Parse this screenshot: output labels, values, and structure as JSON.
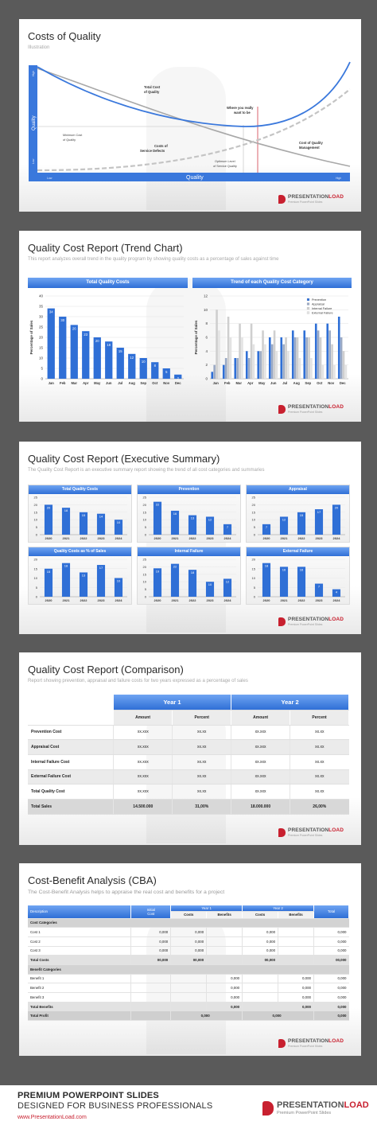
{
  "logo": {
    "brand_a": "PRESENTATION",
    "brand_b": "LOAD",
    "tagline": "Premium PowerPoint Slides"
  },
  "slide1": {
    "title": "Costs of Quality",
    "subtitle": "Illustration",
    "y_axis_label": "Quality",
    "y_high": "High",
    "y_low": "Low",
    "x_axis_label": "Quality",
    "x_low": "Low",
    "x_high": "High",
    "annotations": {
      "total_cost": [
        "Total Cost",
        "of Quality"
      ],
      "where": [
        "Where you really",
        "want to be"
      ],
      "minimum": [
        "Minimum Cost",
        "of Quality"
      ],
      "defects": [
        "Costs of",
        "Service Defects"
      ],
      "management": [
        "Cost of Quality",
        "Management"
      ],
      "optimum": [
        "Optimum Level",
        "of Service Quality"
      ]
    }
  },
  "slide2": {
    "title": "Quality Cost Report (Trend Chart)",
    "subtitle": "This report analyzes overall trend in the quality program by showing quality costs as a percentage of sales against time",
    "chart_data": [
      {
        "type": "bar",
        "title": "Total Quality Costs",
        "ylabel": "Percentage of Sales",
        "categories": [
          "Jan",
          "Feb",
          "Mar",
          "Apr",
          "May",
          "Jun",
          "Jul",
          "Aug",
          "Sep",
          "Oct",
          "Nov",
          "Dec"
        ],
        "values": [
          34,
          30,
          26,
          23,
          20,
          18,
          15,
          12,
          10,
          8,
          5,
          2
        ],
        "ylim": [
          0,
          40
        ],
        "yticks": [
          "0",
          "5",
          "10",
          "15",
          "20",
          "25",
          "30",
          "35",
          "40"
        ]
      },
      {
        "type": "bar",
        "title": "Trend of each Quality Cost Category",
        "ylabel": "Percentage of Sales",
        "categories": [
          "Jan",
          "Feb",
          "Mar",
          "Apr",
          "May",
          "Jun",
          "Jul",
          "Aug",
          "Sep",
          "Oct",
          "Nov",
          "Dec"
        ],
        "ylim": [
          0,
          12
        ],
        "yticks": [
          "0",
          "2",
          "4",
          "6",
          "8",
          "10",
          "12"
        ],
        "legend": "top-right",
        "series": [
          {
            "name": "Prevention",
            "values": [
              1,
              2,
              3,
              4,
              4,
              6,
              6,
              7,
              7,
              8,
              8,
              9
            ]
          },
          {
            "name": "Appraisal",
            "values": [
              2,
              3,
              3,
              3,
              4,
              5,
              5,
              6,
              6,
              7,
              7,
              6
            ]
          },
          {
            "name": "Internal Failure",
            "values": [
              10,
              9,
              8,
              8,
              7,
              7,
              6,
              6,
              6,
              6,
              5,
              4
            ]
          },
          {
            "name": "External Failure",
            "values": [
              7,
              6,
              6,
              5,
              5,
              4,
              4,
              3,
              3,
              2,
              2,
              2
            ]
          }
        ],
        "colors": [
          "#2f6fd6",
          "#9aa9c4",
          "#cfcfcf",
          "#e3e3e3"
        ]
      }
    ]
  },
  "slide3": {
    "title": "Quality Cost Report (Executive Summary)",
    "subtitle": "The Quality Cost Report is an executive summary report showing the trend of all cost categories and summaries",
    "chart_data": [
      {
        "type": "bar",
        "title": "Total Quality Costs",
        "categories": [
          "2020",
          "2021",
          "2022",
          "2023",
          "2024"
        ],
        "values": [
          20,
          18,
          15,
          14,
          10
        ],
        "ylim": [
          0,
          25
        ],
        "yticks": [
          "0",
          "5",
          "10",
          "15",
          "20",
          "25"
        ]
      },
      {
        "type": "bar",
        "title": "Prevention",
        "categories": [
          "2020",
          "2021",
          "2022",
          "2023",
          "2024"
        ],
        "values": [
          22,
          16,
          13,
          12,
          7
        ],
        "ylim": [
          0,
          25
        ],
        "yticks": [
          "0",
          "5",
          "10",
          "15",
          "20",
          "25"
        ]
      },
      {
        "type": "bar",
        "title": "Appraisal",
        "categories": [
          "2020",
          "2021",
          "2022",
          "2023",
          "2024"
        ],
        "values": [
          7,
          12,
          15,
          17,
          20
        ],
        "ylim": [
          0,
          25
        ],
        "yticks": [
          "0",
          "5",
          "10",
          "15",
          "20",
          "25"
        ]
      },
      {
        "type": "bar",
        "title": "Quality Costs as % of Sales",
        "categories": [
          "2020",
          "2021",
          "2022",
          "2023",
          "2024"
        ],
        "values": [
          15,
          18,
          13,
          17,
          10
        ],
        "ylim": [
          0,
          20
        ],
        "yticks": [
          "0",
          "5",
          "10",
          "15",
          "20"
        ]
      },
      {
        "type": "bar",
        "title": "Internal Failure",
        "categories": [
          "2020",
          "2021",
          "2022",
          "2023",
          "2024"
        ],
        "values": [
          19,
          22,
          18,
          10,
          12
        ],
        "ylim": [
          0,
          25
        ],
        "yticks": [
          "0",
          "5",
          "10",
          "15",
          "20",
          "25"
        ]
      },
      {
        "type": "bar",
        "title": "External Failure",
        "categories": [
          "2020",
          "2021",
          "2022",
          "2023",
          "2024"
        ],
        "values": [
          18,
          16,
          16,
          7,
          4
        ],
        "ylim": [
          0,
          20
        ],
        "yticks": [
          "0",
          "5",
          "10",
          "15",
          "20"
        ]
      }
    ]
  },
  "slide4": {
    "title": "Quality Cost Report (Comparison)",
    "subtitle": "Report showing prevention, appraisal and failure costs for two years expressed as a percentage of sales",
    "year1": "Year 1",
    "year2": "Year 2",
    "amount": "Amount",
    "percent": "Percent",
    "rows": [
      {
        "label": "Prevention Cost",
        "a1": "xx.xxx",
        "p1": "xx.xx",
        "a2": "xx.xxx",
        "p2": "xx.xx"
      },
      {
        "label": "Appraisal Cost",
        "a1": "xx.xxx",
        "p1": "xx.xx",
        "a2": "xx.xxx",
        "p2": "xx.xx"
      },
      {
        "label": "Internal Failure Cost",
        "a1": "xx.xxx",
        "p1": "xx.xx",
        "a2": "xx.xxx",
        "p2": "xx.xx"
      },
      {
        "label": "External Failure Cost",
        "a1": "xx.xxx",
        "p1": "xx.xx",
        "a2": "xx.xxx",
        "p2": "xx.xx"
      },
      {
        "label": "Total Quality Cost",
        "a1": "xx.xxx",
        "p1": "xx.xx",
        "a2": "xx.xxx",
        "p2": "xx.xx"
      },
      {
        "label": "Total Sales",
        "a1": "14.500.000",
        "p1": "31,00%",
        "a2": "18.000.000",
        "p2": "26,00%"
      }
    ]
  },
  "slide5": {
    "title": "Cost-Benefit Analysis (CBA)",
    "subtitle": "The Cost-Benefit Analysis helps to appraise the real cost and benefits for a project",
    "headers": {
      "description": "Description",
      "initial_a": "Initial",
      "initial_b": "Cost",
      "year1": "Year 1",
      "year2": "Year 2",
      "costs": "Costs",
      "benefits": "Benefits",
      "total": "Total"
    },
    "cost_categories": "Cost Categories",
    "costs": [
      {
        "label": "Cost 1",
        "init": "0,000",
        "c1": "0,000",
        "c2": "0,000",
        "total": "0,000"
      },
      {
        "label": "Cost 2",
        "init": "0,000",
        "c1": "0,000",
        "c2": "0,000",
        "total": "0,000"
      },
      {
        "label": "Cost 3",
        "init": "0,000",
        "c1": "0,000",
        "c2": "0,000",
        "total": "0,000"
      }
    ],
    "total_costs": {
      "label": "Total Costs",
      "init": "00,000",
      "c1": "00,000",
      "c2": "00,000",
      "total": "00,000"
    },
    "benefit_categories": "Benefit Categories",
    "benefits": [
      {
        "label": "Benefit 1",
        "b1": "0,000",
        "b2": "0,000",
        "total": "0,000"
      },
      {
        "label": "Benefit 2",
        "b1": "0,000",
        "b2": "0,000",
        "total": "0,000"
      },
      {
        "label": "Benefit 3",
        "b1": "0,000",
        "b2": "0,000",
        "total": "0,000"
      }
    ],
    "total_benefits": {
      "label": "Total Benefits",
      "b1": "0,000",
      "b2": "0,000",
      "total": "0,000"
    },
    "total_profit": {
      "label": "Total Profit",
      "y1": "0,000",
      "y2": "0,000",
      "total": "0,000"
    }
  },
  "footer": {
    "line1": "PREMIUM POWERPOINT SLIDES",
    "line2": "DESIGNED FOR BUSINESS PROFESSIONALS",
    "url": "www.PresentationLoad.com"
  }
}
